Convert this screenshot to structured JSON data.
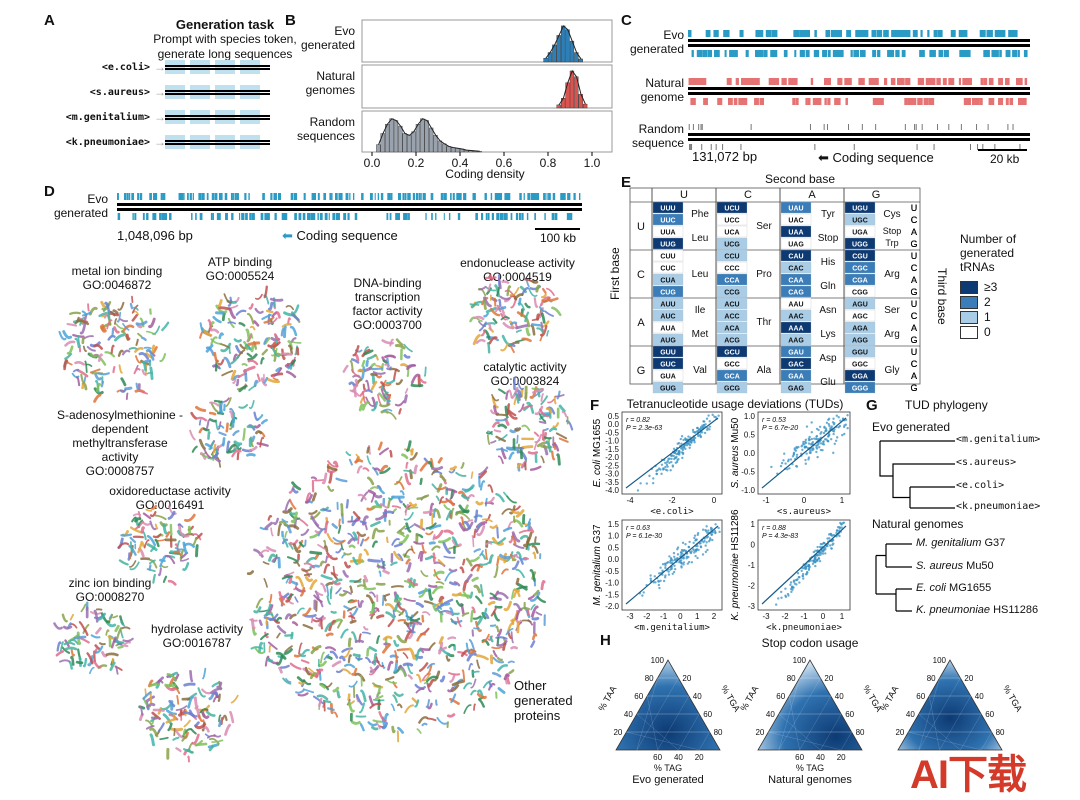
{
  "panel_labels": {
    "a": "A",
    "b": "B",
    "c": "C",
    "d": "D",
    "e": "E",
    "f": "F",
    "g": "G",
    "h": "H"
  },
  "panel_a": {
    "title": "Generation task",
    "subtitle_1": "Prompt with species token,",
    "subtitle_2": "generate long sequences",
    "tokens": [
      "<e.coli>",
      "<s.aureus>",
      "<m.genitalium>",
      "<k.pneumoniae>"
    ]
  },
  "panel_b": {
    "rows": [
      {
        "label_1": "Evo",
        "label_2": "generated",
        "color": "#2d7fb8"
      },
      {
        "label_1": "Natural",
        "label_2": "genomes",
        "color": "#d9534f"
      },
      {
        "label_1": "Random",
        "label_2": "sequences",
        "color": "#9aa3ad"
      }
    ],
    "xticks": [
      "0.0",
      "0.2",
      "0.4",
      "0.6",
      "0.8",
      "1.0"
    ],
    "xlabel": "Coding density"
  },
  "panel_c": {
    "rows": [
      {
        "label_1": "Evo",
        "label_2": "generated",
        "color": "#2a9bc4"
      },
      {
        "label_1": "Natural",
        "label_2": "genome",
        "color": "#e57373"
      },
      {
        "label_1": "Random",
        "label_2": "sequence",
        "color": "#777"
      }
    ],
    "position": "131,072 bp",
    "coding": "Coding sequence",
    "scale": "20 kb"
  },
  "panel_d": {
    "label_1": "Evo",
    "label_2": "generated",
    "position": "1,048,096 bp",
    "coding": "Coding sequence",
    "scale": "100 kb",
    "clusters": [
      {
        "name": "metal ion binding",
        "go": "GO:0046872"
      },
      {
        "name": "ATP binding",
        "go": "GO:0005524"
      },
      {
        "name": "DNA-binding transcription factor activity",
        "go": "GO:0003700"
      },
      {
        "name": "endonuclease activity",
        "go": "GO:0004519"
      },
      {
        "name": "catalytic activity",
        "go": "GO:0003824"
      },
      {
        "name": "S-adenosylmethionine -dependent methyltransferase activity",
        "go": "GO:0008757"
      },
      {
        "name": "oxidoreductase activity",
        "go": "GO:0016491"
      },
      {
        "name": "zinc ion binding",
        "go": "GO:0008270"
      },
      {
        "name": "hydrolase activity",
        "go": "GO:0016787"
      }
    ],
    "other": "Other generated proteins"
  },
  "panel_e": {
    "second_base": "Second base",
    "first_base": "First base",
    "third_base": "Third base",
    "bases": [
      "U",
      "C",
      "A",
      "G"
    ],
    "legend_title_1": "Number of",
    "legend_title_2": "generated",
    "legend_title_3": "tRNAs",
    "legend": [
      {
        "label": "≥3",
        "color": "#0d3a73"
      },
      {
        "label": "2",
        "color": "#3a7db8"
      },
      {
        "label": "1",
        "color": "#a9cde6"
      },
      {
        "label": "0",
        "color": "#ffffff"
      }
    ],
    "codons": [
      [
        [
          "UUU",
          3
        ],
        [
          "UUC",
          2
        ],
        [
          "UUA",
          0
        ],
        [
          "UUG",
          3
        ],
        [
          "UCU",
          3
        ],
        [
          "UCC",
          0
        ],
        [
          "UCA",
          0
        ],
        [
          "UCG",
          1
        ],
        [
          "UAU",
          2
        ],
        [
          "UAC",
          0
        ],
        [
          "UAA",
          3
        ],
        [
          "UAG",
          0
        ],
        [
          "UGU",
          3
        ],
        [
          "UGC",
          1
        ],
        [
          "UGA",
          0
        ],
        [
          "UGG",
          3
        ]
      ],
      [
        [
          "CUU",
          0
        ],
        [
          "CUC",
          0
        ],
        [
          "CUA",
          1
        ],
        [
          "CUG",
          2
        ],
        [
          "CCU",
          1
        ],
        [
          "CCC",
          0
        ],
        [
          "CCA",
          2
        ],
        [
          "CCG",
          1
        ],
        [
          "CAU",
          3
        ],
        [
          "CAC",
          1
        ],
        [
          "CAA",
          2
        ],
        [
          "CAG",
          2
        ],
        [
          "CGU",
          3
        ],
        [
          "CGC",
          2
        ],
        [
          "CGA",
          2
        ],
        [
          "CGG",
          0
        ]
      ],
      [
        [
          "AUU",
          1
        ],
        [
          "AUC",
          1
        ],
        [
          "AUA",
          0
        ],
        [
          "AUG",
          1
        ],
        [
          "ACU",
          1
        ],
        [
          "ACC",
          1
        ],
        [
          "ACA",
          1
        ],
        [
          "ACG",
          1
        ],
        [
          "AAU",
          0
        ],
        [
          "AAC",
          1
        ],
        [
          "AAA",
          3
        ],
        [
          "AAG",
          1
        ],
        [
          "AGU",
          1
        ],
        [
          "AGC",
          0
        ],
        [
          "AGA",
          1
        ],
        [
          "AGG",
          1
        ]
      ],
      [
        [
          "GUU",
          3
        ],
        [
          "GUC",
          3
        ],
        [
          "GUA",
          0
        ],
        [
          "GUG",
          1
        ],
        [
          "GCU",
          3
        ],
        [
          "GCC",
          0
        ],
        [
          "GCA",
          2
        ],
        [
          "GCG",
          1
        ],
        [
          "GAU",
          2
        ],
        [
          "GAC",
          3
        ],
        [
          "GAA",
          2
        ],
        [
          "GAG",
          1
        ],
        [
          "GGU",
          1
        ],
        [
          "GGC",
          0
        ],
        [
          "GGA",
          3
        ],
        [
          "GGG",
          2
        ]
      ]
    ],
    "amino": [
      [
        [
          "Phe",
          "Leu"
        ],
        [
          "Ser"
        ],
        [
          "Tyr",
          "Stop"
        ],
        [
          "Cys",
          "Stop",
          "Trp"
        ]
      ],
      [
        [
          "Leu"
        ],
        [
          "Pro"
        ],
        [
          "His",
          "Gln"
        ],
        [
          "Arg"
        ]
      ],
      [
        [
          "Ile",
          "Met"
        ],
        [
          "Thr"
        ],
        [
          "Asn",
          "Lys"
        ],
        [
          "Ser",
          "Arg"
        ]
      ],
      [
        [
          "Val"
        ],
        [
          "Ala"
        ],
        [
          "Asp",
          "Glu"
        ],
        [
          "Gly"
        ]
      ]
    ]
  },
  "panel_f": {
    "title": "Tetranucleotide usage deviations (TUDs)",
    "plots": [
      {
        "ylabel_sp": "E. coli",
        "ylabel_st": "MG1655",
        "xlabel": "<e.coli>",
        "r": "r = 0.82",
        "p": "P = 2.3e-63",
        "xticks": [
          "-4",
          "-2",
          "0"
        ],
        "yticks": [
          "0.5",
          "0.0",
          "-0.5",
          "-1.0",
          "-1.5",
          "-2.0",
          "-2.5",
          "-3.0",
          "-3.5",
          "-4.0"
        ]
      },
      {
        "ylabel_sp": "S. aureus",
        "ylabel_st": "Mu50",
        "xlabel": "<s.aureus>",
        "r": "r = 0.53",
        "p": "P = 6.7e-20",
        "xticks": [
          "-1",
          "0",
          "1"
        ],
        "yticks": [
          "1.0",
          "0.5",
          "0.0",
          "-0.5",
          "-1.0"
        ]
      },
      {
        "ylabel_sp": "M. genitalium",
        "ylabel_st": "G37",
        "xlabel": "<m.genitalium>",
        "r": "r = 0.63",
        "p": "P = 6.1e-30",
        "xticks": [
          "-3",
          "-2",
          "-1",
          "0",
          "1",
          "2"
        ],
        "yticks": [
          "1.5",
          "1.0",
          "0.5",
          "0.0",
          "-0.5",
          "-1.0",
          "-1.5",
          "-2.0"
        ]
      },
      {
        "ylabel_sp": "K. pneumoniae",
        "ylabel_st": "HS11286",
        "xlabel": "<k.pneumoniae>",
        "r": "r = 0.88",
        "p": "P = 4.3e-83",
        "xticks": [
          "-3",
          "-2",
          "-1",
          "0",
          "1"
        ],
        "yticks": [
          "1",
          "0",
          "-1",
          "-2",
          "-3"
        ]
      }
    ]
  },
  "panel_g": {
    "title": "TUD phylogeny",
    "evo_title": "Evo generated",
    "evo_leaves": [
      "<m.genitalium>",
      "<s.aureus>",
      "<e.coli>",
      "<k.pneumoniae>"
    ],
    "nat_title": "Natural genomes",
    "nat_leaves": [
      {
        "sp": "M. genitalium",
        "st": "G37"
      },
      {
        "sp": "S. aureus",
        "st": "Mu50"
      },
      {
        "sp": "E. coli",
        "st": "MG1655"
      },
      {
        "sp": "K. pneumoniae",
        "st": "HS11286"
      }
    ]
  },
  "panel_h": {
    "title": "Stop codon usage",
    "plots": [
      {
        "caption": "Evo generated"
      },
      {
        "caption": "Natural genomes"
      },
      {
        "caption": ""
      }
    ],
    "axis_taa": "% TAA",
    "axis_tga": "% TGA",
    "axis_tag": "% TAG",
    "ticks": [
      "100",
      "80",
      "60",
      "40",
      "20"
    ]
  },
  "watermark": "AI下载"
}
